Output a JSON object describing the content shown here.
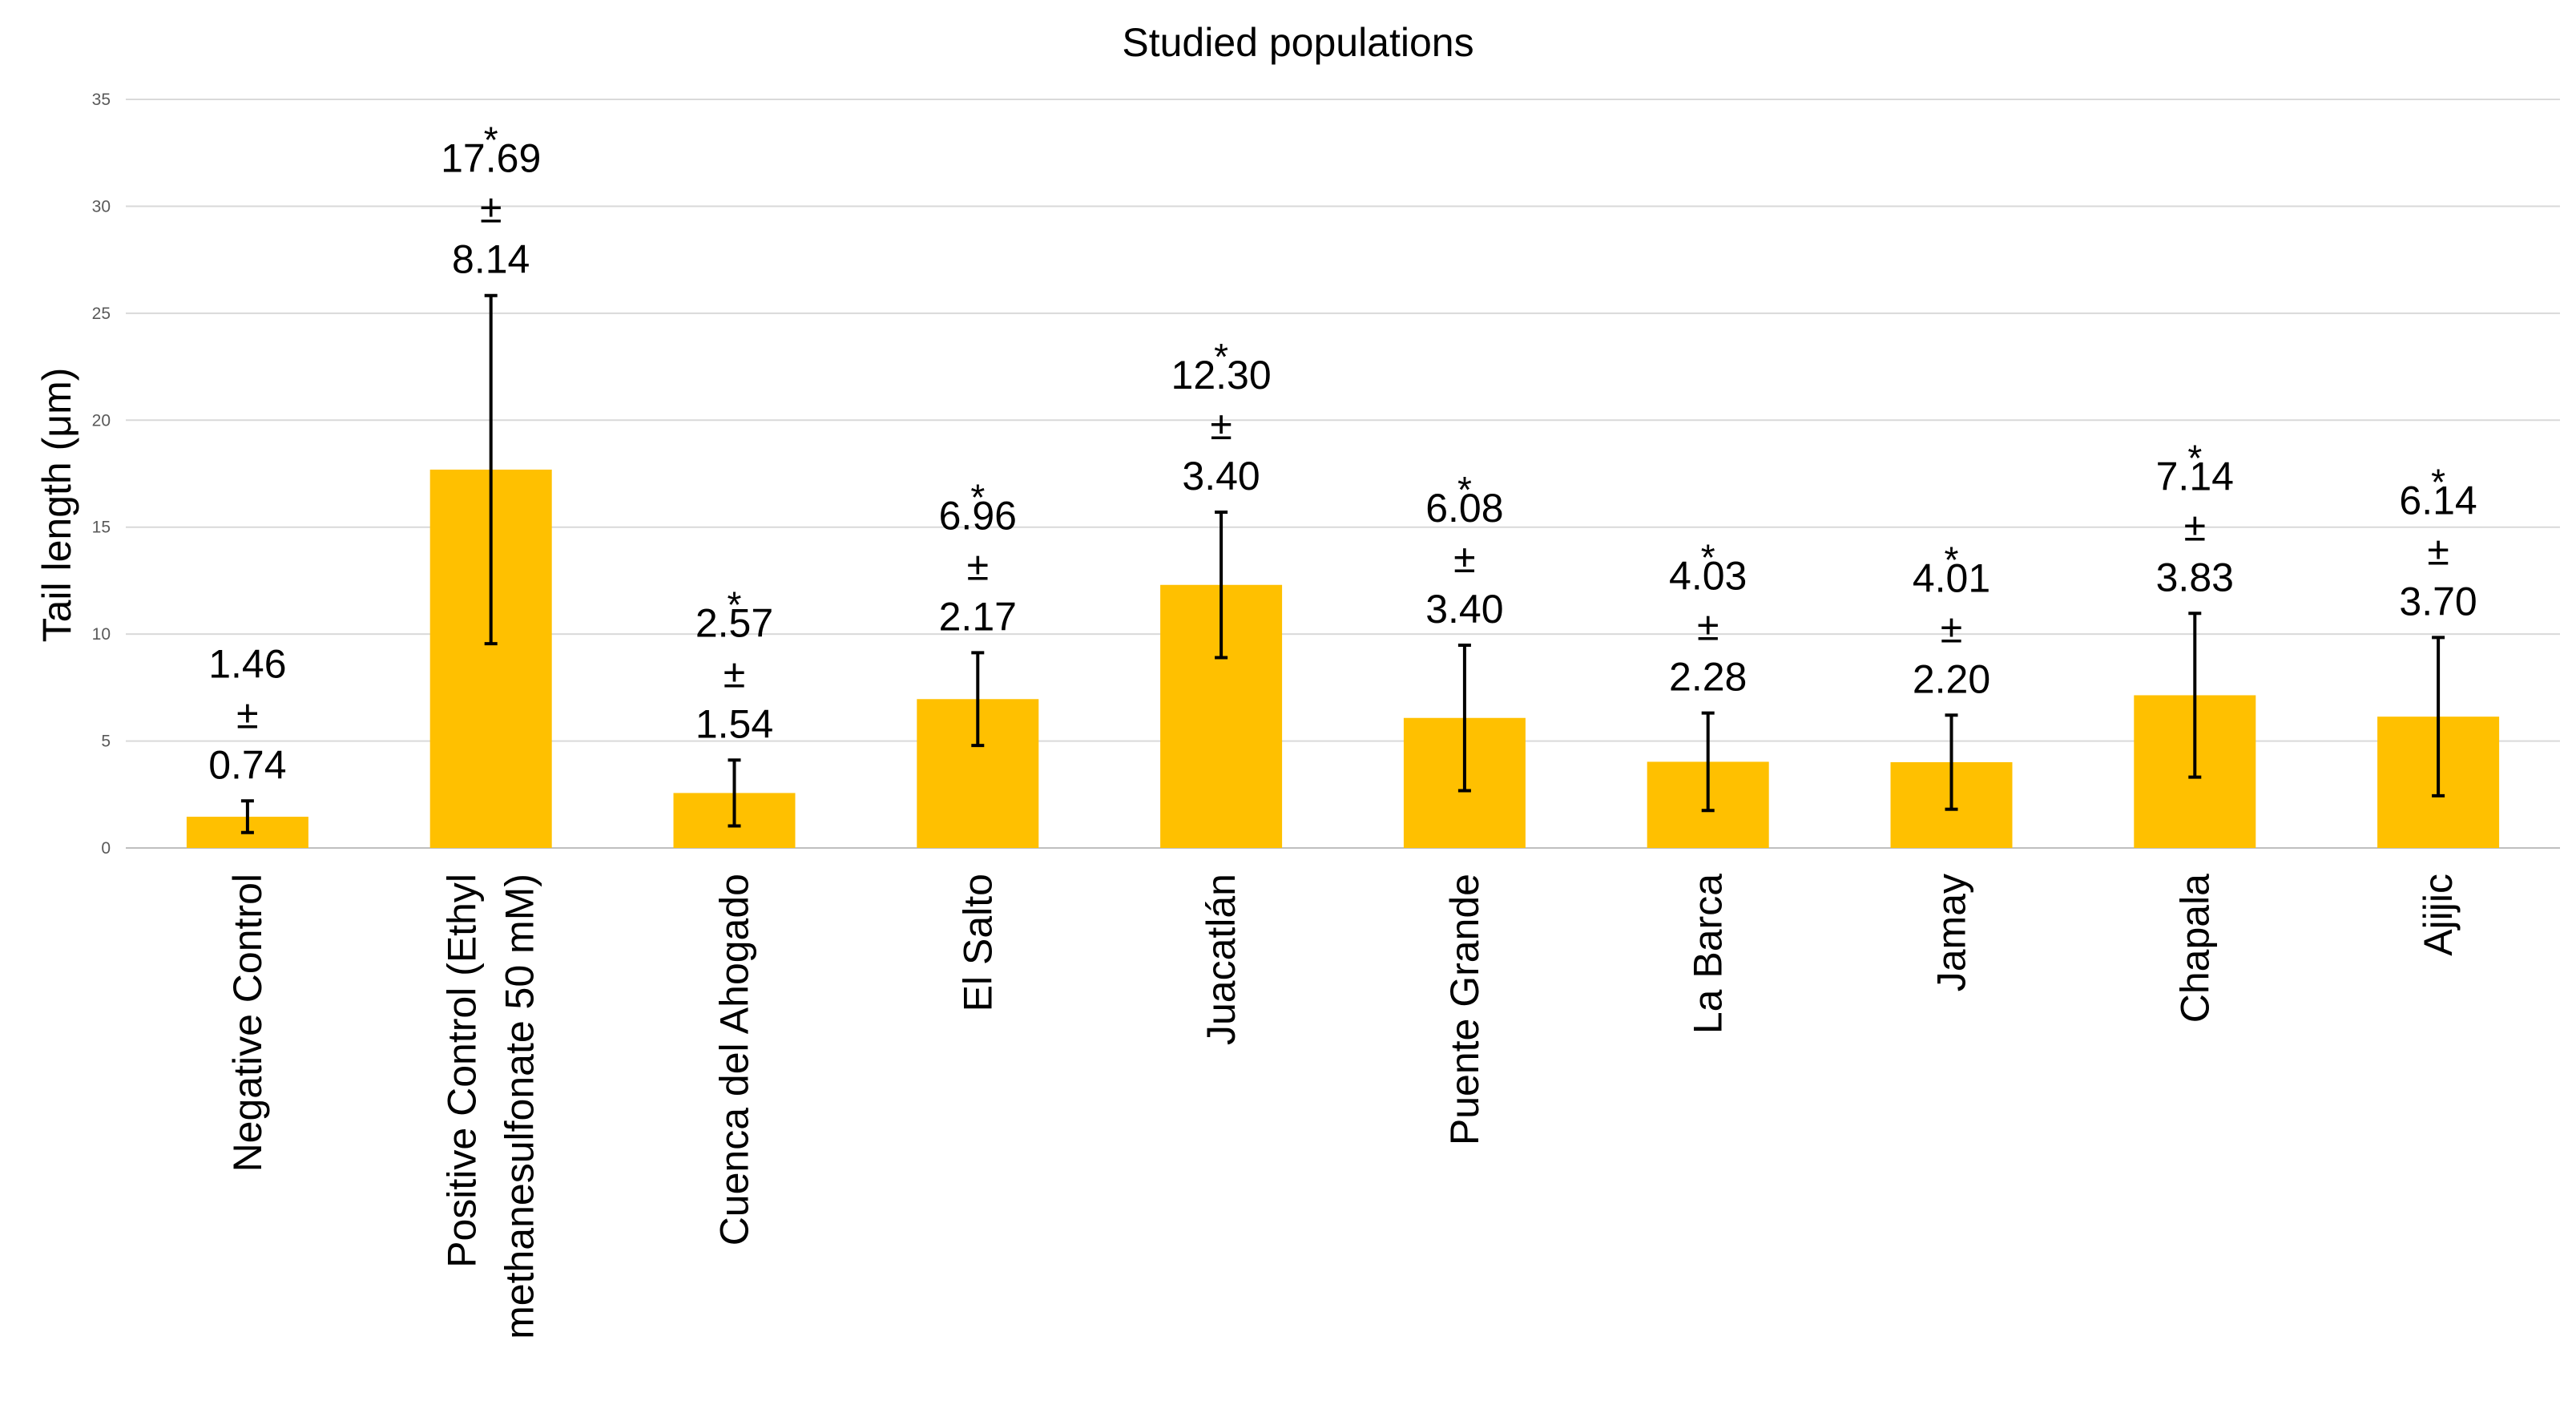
{
  "chart_data": {
    "type": "bar",
    "title": "Studied populations",
    "xlabel": "",
    "ylabel": "Tail length (μm)",
    "ylim": [
      0,
      35
    ],
    "yticks": [
      0,
      5,
      10,
      15,
      20,
      25,
      30,
      35
    ],
    "grid": true,
    "legend": "none",
    "bar_color": "#FFC000",
    "categories": [
      [
        "Negative Control"
      ],
      [
        "Positive Control (Ethyl",
        "methanesulfonate 50 mM)"
      ],
      [
        "Cuenca del Ahogado"
      ],
      [
        "El Salto"
      ],
      [
        "Juacatlán"
      ],
      [
        "Puente Grande"
      ],
      [
        "La Barca"
      ],
      [
        "Jamay"
      ],
      [
        "Chapala"
      ],
      [
        "Ajijic"
      ]
    ],
    "values": [
      1.46,
      17.69,
      2.57,
      6.96,
      12.3,
      6.08,
      4.03,
      4.01,
      7.14,
      6.14
    ],
    "errors": [
      0.74,
      8.14,
      1.54,
      2.17,
      3.4,
      3.4,
      2.28,
      2.2,
      3.83,
      3.7
    ],
    "labels": [
      [
        "1.46",
        "±",
        "0.74"
      ],
      [
        "17.69",
        "±",
        "8.14"
      ],
      [
        "2.57",
        "±",
        "1.54"
      ],
      [
        "6.96",
        "±",
        "2.17"
      ],
      [
        "12.30",
        "±",
        "3.40"
      ],
      [
        "6.08",
        "±",
        "3.40"
      ],
      [
        "4.03",
        "±",
        "2.28"
      ],
      [
        "4.01",
        "±",
        "2.20"
      ],
      [
        "7.14",
        "±",
        "3.83"
      ],
      [
        "6.14",
        "±",
        "3.70"
      ]
    ],
    "significance": [
      "",
      "*",
      "*",
      "*",
      "*",
      "*",
      "*",
      "*",
      "*",
      "*"
    ]
  }
}
